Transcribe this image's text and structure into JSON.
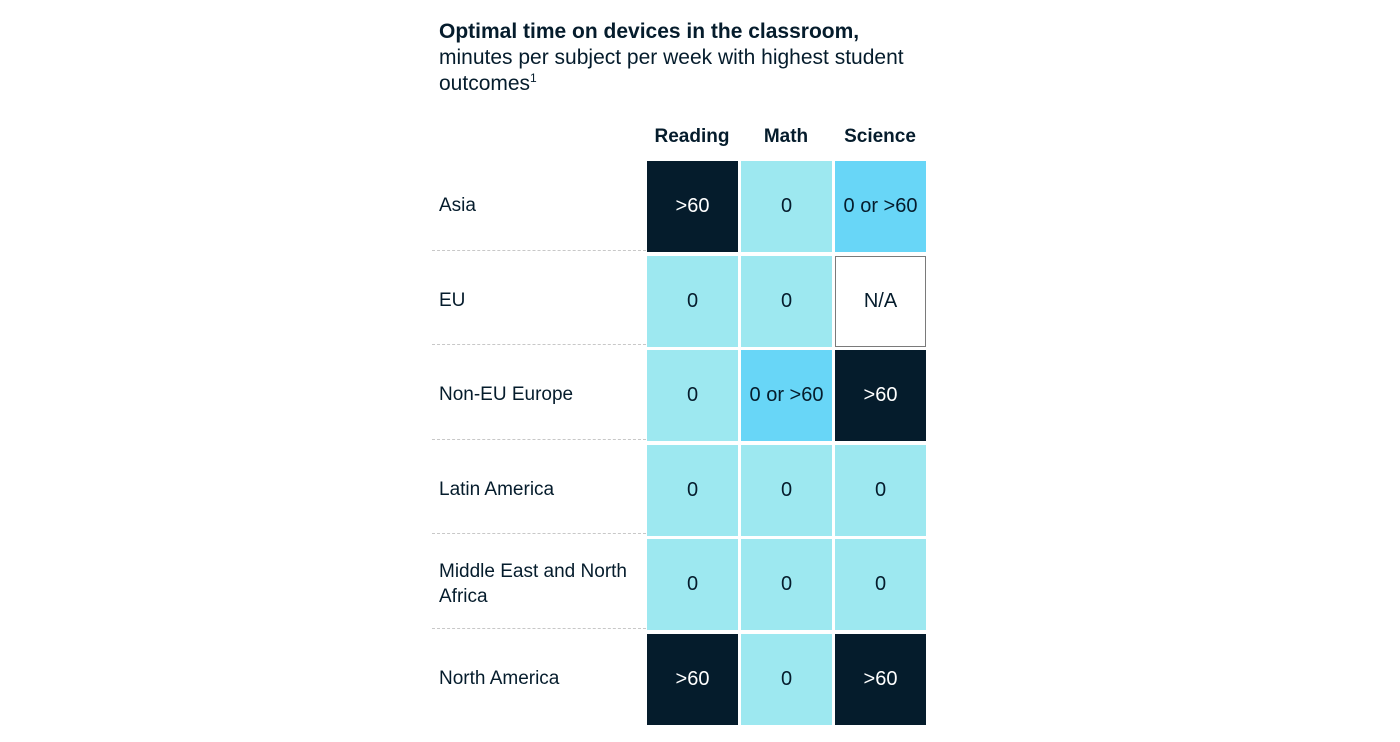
{
  "chart_data": {
    "type": "table",
    "title": "Optimal time on devices in the classroom,",
    "subtitle": "minutes per subject per week with highest student outcomes",
    "footnote_marker": "1",
    "columns": [
      "Reading",
      "Math",
      "Science"
    ],
    "rows": [
      {
        "label": "Asia",
        "values": [
          ">60",
          "0",
          "0 or >60"
        ]
      },
      {
        "label": "EU",
        "values": [
          "0",
          "0",
          "N/A"
        ]
      },
      {
        "label": "Non-EU Europe",
        "values": [
          "0",
          "0 or >60",
          ">60"
        ]
      },
      {
        "label": "Latin America",
        "values": [
          "0",
          "0",
          "0"
        ]
      },
      {
        "label": "Middle East and North Africa",
        "values": [
          "0",
          "0",
          "0"
        ]
      },
      {
        "label": "North America",
        "values": [
          ">60",
          "0",
          ">60"
        ]
      }
    ],
    "colors": {
      ">60": "#051c2c",
      "0": "#9de8f0",
      "0 or >60": "#68d6f7",
      "N/A": "#ffffff"
    }
  }
}
